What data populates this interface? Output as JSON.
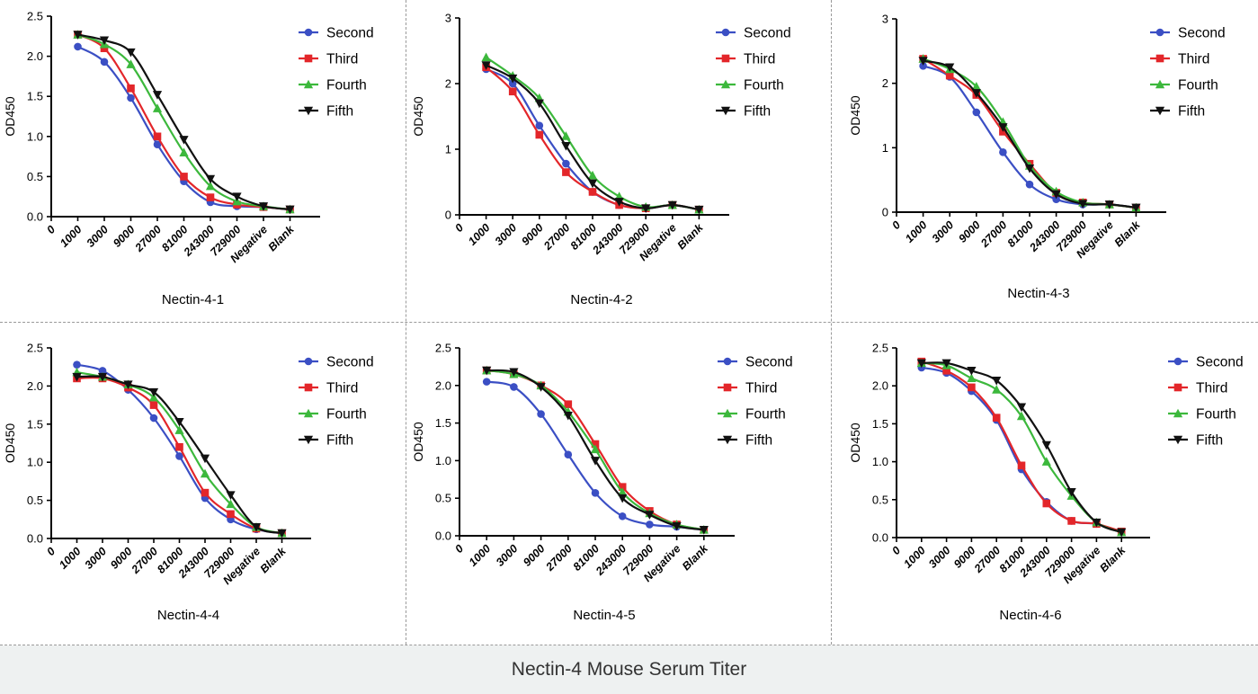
{
  "caption": "Nectin-4 Mouse Serum Titer",
  "x_categories": [
    "0",
    "1000",
    "3000",
    "9000",
    "27000",
    "81000",
    "243000",
    "729000",
    "Negative",
    "Blank"
  ],
  "series_styles": [
    {
      "name": "Second",
      "color": "#3b4fc4",
      "marker": "circle"
    },
    {
      "name": "Third",
      "color": "#e3262a",
      "marker": "square"
    },
    {
      "name": "Fourth",
      "color": "#3cb83c",
      "marker": "triangle-up"
    },
    {
      "name": "Fifth",
      "color": "#111111",
      "marker": "triangle-down"
    }
  ],
  "chart_data": [
    {
      "type": "line",
      "title": "Nectin-4-1",
      "ylabel": "OD450",
      "ylim": [
        0,
        2.5
      ],
      "yticks": [
        "0.0",
        "0.5",
        "1.0",
        "1.5",
        "2.0",
        "2.5"
      ],
      "categories": [
        "1000",
        "3000",
        "9000",
        "27000",
        "81000",
        "243000",
        "729000",
        "Negative",
        "Blank"
      ],
      "legend": "top-right",
      "series": [
        {
          "name": "Second",
          "values": [
            2.12,
            1.93,
            1.48,
            0.9,
            0.44,
            0.18,
            0.13,
            0.12,
            0.09
          ]
        },
        {
          "name": "Third",
          "values": [
            2.27,
            2.1,
            1.6,
            1.0,
            0.5,
            0.24,
            0.15,
            0.12,
            0.09
          ]
        },
        {
          "name": "Fourth",
          "values": [
            2.27,
            2.15,
            1.9,
            1.35,
            0.8,
            0.38,
            0.19,
            0.13,
            0.09
          ]
        },
        {
          "name": "Fifth",
          "values": [
            2.27,
            2.2,
            2.05,
            1.52,
            0.96,
            0.47,
            0.25,
            0.13,
            0.09
          ]
        }
      ]
    },
    {
      "type": "line",
      "title": "Nectin-4-2",
      "ylabel": "OD450",
      "ylim": [
        0,
        3
      ],
      "yticks": [
        "0",
        "1",
        "2",
        "3"
      ],
      "categories": [
        "1000",
        "3000",
        "9000",
        "27000",
        "81000",
        "243000",
        "729000",
        "Negative",
        "Blank"
      ],
      "legend": "top-right",
      "series": [
        {
          "name": "Second",
          "values": [
            2.22,
            2.0,
            1.36,
            0.78,
            0.35,
            0.15,
            0.1,
            0.15,
            0.08
          ]
        },
        {
          "name": "Third",
          "values": [
            2.25,
            1.88,
            1.22,
            0.65,
            0.35,
            0.15,
            0.1,
            0.15,
            0.08
          ]
        },
        {
          "name": "Fourth",
          "values": [
            2.4,
            2.12,
            1.78,
            1.2,
            0.6,
            0.28,
            0.12,
            0.15,
            0.08
          ]
        },
        {
          "name": "Fifth",
          "values": [
            2.28,
            2.08,
            1.7,
            1.05,
            0.48,
            0.2,
            0.1,
            0.15,
            0.08
          ]
        }
      ]
    },
    {
      "type": "line",
      "title": "Nectin-4-3",
      "ylabel": "OD450",
      "ylim": [
        0,
        3
      ],
      "yticks": [
        "0",
        "1",
        "2",
        "3"
      ],
      "categories": [
        "1000",
        "3000",
        "9000",
        "27000",
        "81000",
        "243000",
        "729000",
        "Negative",
        "Blank"
      ],
      "legend": "top-right",
      "series": [
        {
          "name": "Second",
          "values": [
            2.27,
            2.1,
            1.55,
            0.93,
            0.43,
            0.2,
            0.12,
            0.12,
            0.07
          ]
        },
        {
          "name": "Third",
          "values": [
            2.38,
            2.12,
            1.82,
            1.25,
            0.75,
            0.3,
            0.15,
            0.12,
            0.07
          ]
        },
        {
          "name": "Fourth",
          "values": [
            2.38,
            2.22,
            1.95,
            1.4,
            0.72,
            0.32,
            0.15,
            0.12,
            0.07
          ]
        },
        {
          "name": "Fifth",
          "values": [
            2.35,
            2.25,
            1.85,
            1.32,
            0.68,
            0.28,
            0.13,
            0.12,
            0.07
          ]
        }
      ]
    },
    {
      "type": "line",
      "title": "Nectin-4-4",
      "ylabel": "OD450",
      "ylim": [
        0,
        2.5
      ],
      "yticks": [
        "0.0",
        "0.5",
        "1.0",
        "1.5",
        "2.0",
        "2.5"
      ],
      "categories": [
        "1000",
        "3000",
        "9000",
        "27000",
        "81000",
        "243000",
        "729000",
        "Negative",
        "Blank"
      ],
      "legend": "top-right",
      "series": [
        {
          "name": "Second",
          "values": [
            2.28,
            2.2,
            1.95,
            1.58,
            1.08,
            0.53,
            0.25,
            0.12,
            0.07
          ]
        },
        {
          "name": "Third",
          "values": [
            2.1,
            2.1,
            1.98,
            1.75,
            1.2,
            0.6,
            0.32,
            0.13,
            0.07
          ]
        },
        {
          "name": "Fourth",
          "values": [
            2.18,
            2.12,
            2.02,
            1.85,
            1.42,
            0.85,
            0.45,
            0.15,
            0.07
          ]
        },
        {
          "name": "Fifth",
          "values": [
            2.12,
            2.12,
            2.02,
            1.92,
            1.53,
            1.05,
            0.57,
            0.15,
            0.07
          ]
        }
      ]
    },
    {
      "type": "line",
      "title": "Nectin-4-5",
      "ylabel": "OD450",
      "ylim": [
        0,
        2.5
      ],
      "yticks": [
        "0.0",
        "0.5",
        "1.0",
        "1.5",
        "2.0",
        "2.5"
      ],
      "categories": [
        "1000",
        "3000",
        "9000",
        "27000",
        "81000",
        "243000",
        "729000",
        "Negative",
        "Blank"
      ],
      "legend": "top-right",
      "series": [
        {
          "name": "Second",
          "values": [
            2.05,
            1.98,
            1.62,
            1.08,
            0.57,
            0.26,
            0.15,
            0.12,
            0.08
          ]
        },
        {
          "name": "Third",
          "values": [
            2.2,
            2.15,
            2.0,
            1.75,
            1.22,
            0.65,
            0.33,
            0.15,
            0.08
          ]
        },
        {
          "name": "Fourth",
          "values": [
            2.2,
            2.15,
            2.0,
            1.65,
            1.15,
            0.58,
            0.3,
            0.15,
            0.08
          ]
        },
        {
          "name": "Fifth",
          "values": [
            2.2,
            2.18,
            1.98,
            1.6,
            1.0,
            0.5,
            0.28,
            0.13,
            0.08
          ]
        }
      ]
    },
    {
      "type": "line",
      "title": "Nectin-4-6",
      "ylabel": "OD450",
      "ylim": [
        0,
        2.5
      ],
      "yticks": [
        "0.0",
        "0.5",
        "1.0",
        "1.5",
        "2.0",
        "2.5"
      ],
      "categories": [
        "1000",
        "3000",
        "9000",
        "27000",
        "81000",
        "243000",
        "729000",
        "Negative",
        "Blank"
      ],
      "legend": "top-right",
      "series": [
        {
          "name": "Second",
          "values": [
            2.24,
            2.17,
            1.93,
            1.55,
            0.9,
            0.47,
            0.22,
            0.18,
            0.07
          ]
        },
        {
          "name": "Third",
          "values": [
            2.32,
            2.2,
            1.98,
            1.58,
            0.95,
            0.45,
            0.22,
            0.18,
            0.08
          ]
        },
        {
          "name": "Fourth",
          "values": [
            2.3,
            2.27,
            2.1,
            1.95,
            1.6,
            1.0,
            0.55,
            0.2,
            0.07
          ]
        },
        {
          "name": "Fifth",
          "values": [
            2.3,
            2.3,
            2.2,
            2.07,
            1.72,
            1.22,
            0.6,
            0.2,
            0.07
          ]
        }
      ]
    }
  ]
}
